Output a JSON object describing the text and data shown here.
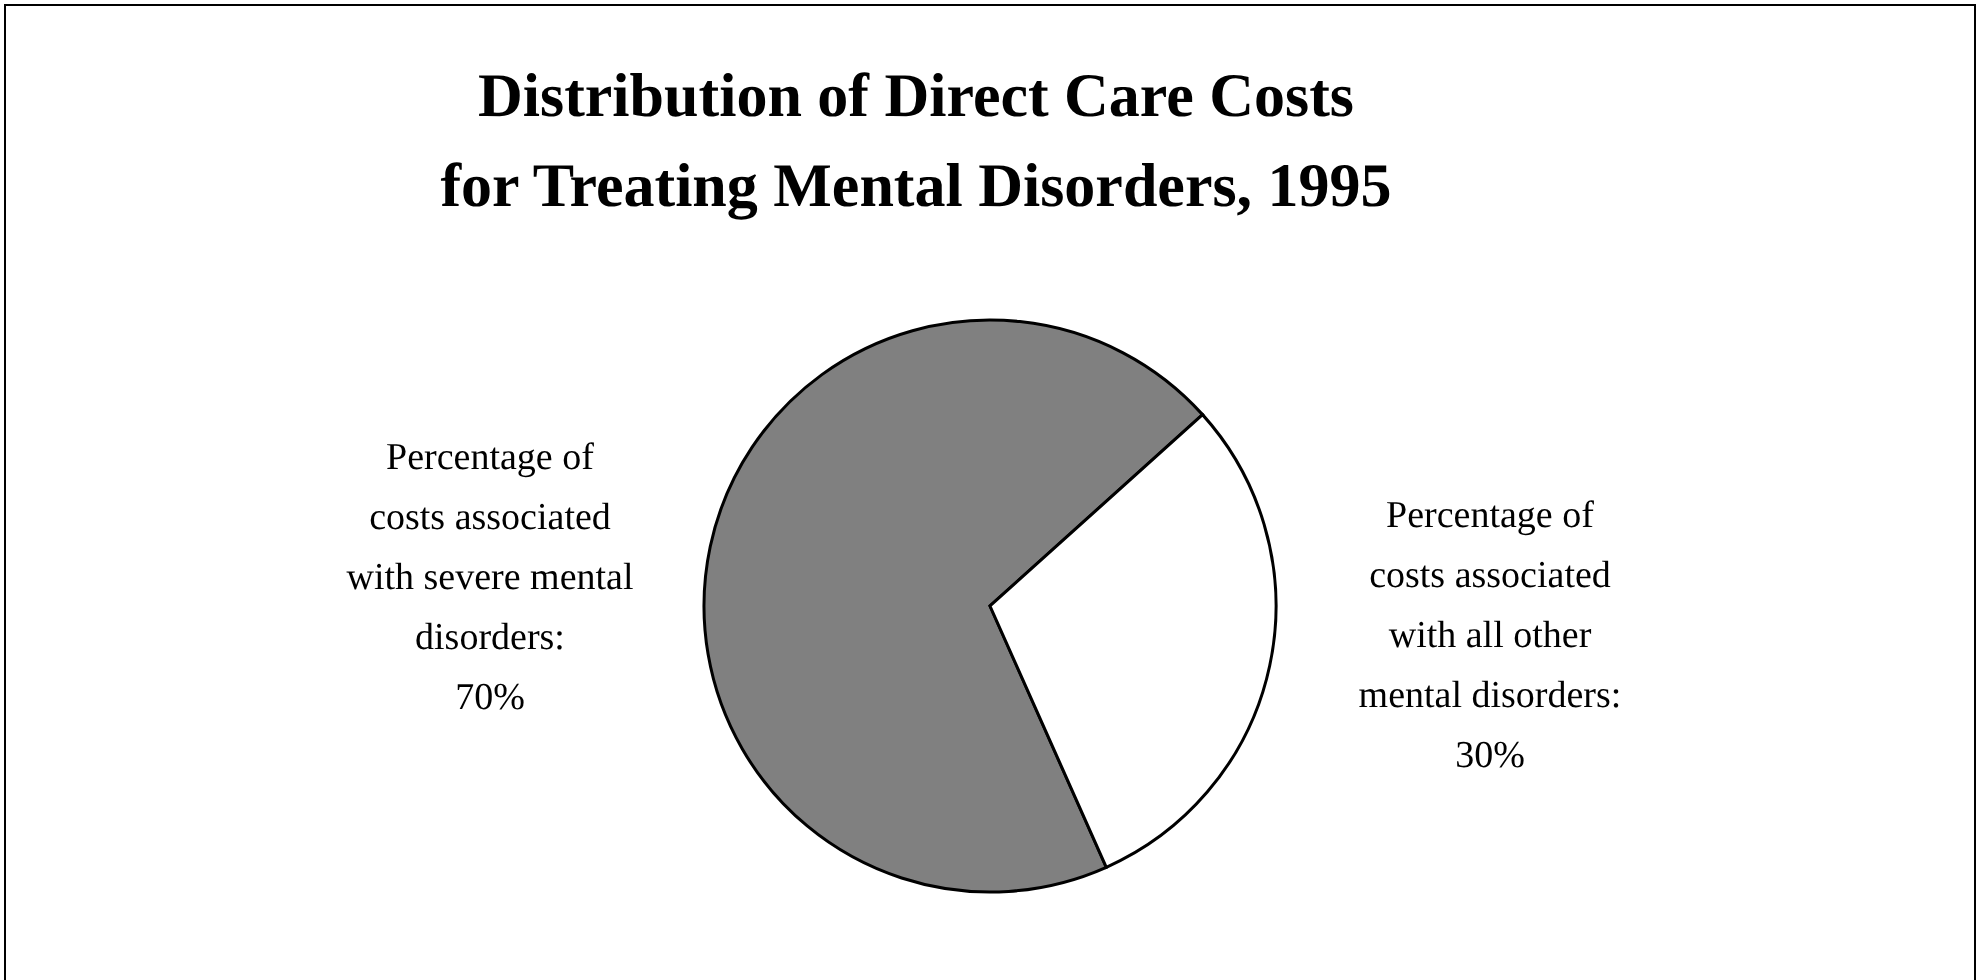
{
  "chart_data": {
    "type": "pie",
    "title": "Distribution of Direct Care Costs\nfor Treating Mental Disorders, 1995",
    "categories": [
      null,
      null
    ],
    "values": [
      70,
      30
    ],
    "colors": [
      "#808080",
      "#ffffff"
    ],
    "value_labels": [
      "Percentage of costs associated with severe mental disorders:\n70%",
      "Percentage of costs associated with all other mental disorders:\n30%"
    ],
    "legend": false
  }
}
